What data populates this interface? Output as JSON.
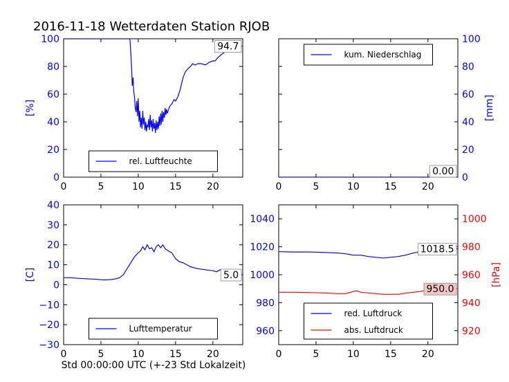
{
  "title": "2016-11-18 Wetterdaten Station RJOB",
  "xlabel": "Std 00:00:00 UTC (+-23 Std Lokalzeit)",
  "colors": {
    "blue": "#0000ff",
    "red": "#ff0000",
    "black": "#000000",
    "box_red": "#f4c6c6"
  },
  "chart_data": [
    {
      "type": "line",
      "panel": "top-left",
      "ylabel": "[%]",
      "xlim": [
        0,
        24
      ],
      "ylim": [
        0,
        100
      ],
      "xticks": [
        0,
        5,
        10,
        15,
        20
      ],
      "yticks": [
        0,
        20,
        40,
        60,
        80,
        100
      ],
      "legend_placement": "lower-center",
      "last_value_label": "94.7",
      "series": [
        {
          "name": "rel. Luftfeuchte",
          "color": "#0000ff",
          "x": [
            0,
            8.8,
            8.9,
            9.0,
            9.1,
            9.2,
            9.3,
            9.4,
            9.5,
            9.6,
            9.7,
            9.8,
            9.9,
            10.0,
            10.1,
            10.2,
            10.3,
            10.4,
            10.5,
            10.6,
            10.7,
            10.8,
            10.9,
            11.0,
            11.1,
            11.2,
            11.3,
            11.4,
            11.5,
            11.6,
            11.7,
            11.8,
            11.9,
            12.0,
            12.1,
            12.2,
            12.3,
            12.4,
            12.5,
            12.6,
            12.7,
            12.8,
            12.9,
            13.0,
            13.1,
            13.2,
            13.3,
            13.4,
            13.5,
            13.6,
            13.7,
            13.8,
            13.9,
            14.0,
            14.2,
            14.5,
            14.8,
            15.0,
            15.3,
            15.6,
            16.0,
            16.3,
            16.6,
            17.0,
            17.3,
            17.6,
            18.0,
            18.5,
            19.0,
            19.5,
            20.0,
            20.3,
            20.6,
            21.0,
            21.5,
            22.0,
            22.5,
            23.0,
            23.5,
            24.0
          ],
          "y": [
            100,
            100,
            99,
            90,
            80,
            66,
            72,
            62,
            58,
            50,
            47,
            55,
            44,
            57,
            40,
            48,
            36,
            43,
            35,
            48,
            38,
            43,
            34,
            40,
            33,
            38,
            36,
            42,
            34,
            45,
            36,
            41,
            33,
            42,
            35,
            39,
            32,
            41,
            34,
            40,
            35,
            44,
            37,
            46,
            38,
            48,
            40,
            47,
            43,
            50,
            45,
            49,
            46,
            48,
            51,
            53,
            56,
            55,
            58,
            63,
            72,
            76,
            78,
            80,
            82,
            81,
            82,
            82,
            81,
            83,
            84,
            84,
            86,
            88,
            90,
            92,
            94,
            95,
            94.7,
            94.7
          ]
        }
      ]
    },
    {
      "type": "line",
      "panel": "top-right",
      "ylabel": "[mm]",
      "xlim": [
        0,
        24
      ],
      "ylim": [
        0,
        100
      ],
      "xticks": [
        0,
        5,
        10,
        15,
        20
      ],
      "yticks": [
        0,
        20,
        40,
        60,
        80,
        100
      ],
      "y_axis_side": "right",
      "legend_placement": "upper-center",
      "last_value_label": "0.00",
      "series": [
        {
          "name": "kum. Niederschlag",
          "color": "#0000ff",
          "x": [
            0,
            24
          ],
          "y": [
            0,
            0
          ]
        }
      ]
    },
    {
      "type": "line",
      "panel": "bottom-left",
      "ylabel": "[C]",
      "xlim": [
        0,
        24
      ],
      "ylim": [
        -30,
        40
      ],
      "xticks": [
        0,
        5,
        10,
        15,
        20
      ],
      "yticks": [
        -30,
        -20,
        -10,
        0,
        10,
        20,
        30,
        40
      ],
      "legend_placement": "lower-center",
      "last_value_label": "5.0",
      "series": [
        {
          "name": "Lufttemperatur",
          "color": "#0000ff",
          "x": [
            0,
            1,
            2,
            3,
            4,
            5,
            5.5,
            6,
            6.5,
            7,
            7.5,
            8,
            8.5,
            9,
            9.5,
            10,
            10.3,
            10.6,
            10.9,
            11.2,
            11.5,
            11.8,
            12.1,
            12.4,
            12.7,
            13.0,
            13.3,
            13.6,
            14.0,
            14.5,
            15.0,
            15.5,
            16.0,
            16.5,
            17.0,
            18.0,
            19.0,
            20.0,
            20.5,
            21.0,
            22.0,
            23.0,
            24.0
          ],
          "y": [
            3.5,
            3.5,
            3.2,
            3.0,
            2.8,
            2.5,
            2.4,
            2.5,
            2.6,
            3.0,
            3.5,
            5.0,
            8.0,
            11.0,
            14.0,
            16.0,
            17.0,
            19.0,
            17.5,
            20.0,
            18.0,
            18.5,
            16.5,
            19.0,
            20.0,
            18.5,
            20.0,
            18.0,
            17.0,
            16.0,
            13.0,
            11.5,
            11.0,
            10.0,
            9.0,
            8.0,
            7.5,
            7.0,
            6.5,
            7.5,
            6.0,
            5.0,
            5.0
          ]
        }
      ]
    },
    {
      "type": "line",
      "panel": "bottom-right",
      "xlim": [
        0,
        24
      ],
      "ylim": [
        950,
        1050
      ],
      "xticks": [
        0,
        5,
        10,
        15,
        20
      ],
      "yticks": [
        960,
        980,
        1000,
        1020,
        1040
      ],
      "y2label": "[hPa]",
      "y2lim": [
        910,
        1010
      ],
      "y2ticks": [
        920,
        940,
        960,
        980,
        1000
      ],
      "legend_placement": "lower-center",
      "last_value_label": "1018.5",
      "last_value_label_2": "950.0",
      "series": [
        {
          "name": "red. Luftdruck",
          "color": "#0000ff",
          "axis": "left",
          "x": [
            0,
            2,
            4,
            6,
            8,
            9,
            10,
            11,
            12,
            13,
            14,
            15,
            16,
            17,
            18,
            19,
            20,
            21,
            22,
            23,
            24
          ],
          "y": [
            1016.5,
            1016.3,
            1016.3,
            1016.0,
            1015.5,
            1015.0,
            1014.0,
            1014.0,
            1013.0,
            1012.5,
            1012.0,
            1012.5,
            1013.0,
            1014.0,
            1015.5,
            1016.5,
            1017.5,
            1018.0,
            1018.3,
            1018.5,
            1018.5
          ]
        },
        {
          "name": "abs. Luftdruck",
          "color": "#ff0000",
          "axis": "right",
          "x": [
            0,
            2,
            4,
            6,
            8,
            9,
            10,
            10.5,
            11,
            12,
            13,
            14,
            15,
            16,
            17,
            18,
            19,
            20,
            21,
            22,
            23,
            24
          ],
          "y": [
            947.5,
            947.5,
            947.3,
            947.0,
            946.5,
            946.5,
            948.0,
            948.5,
            947.5,
            947.0,
            946.5,
            946.0,
            946.0,
            946.0,
            946.8,
            947.5,
            948.0,
            949.0,
            949.5,
            950.0,
            950.0,
            950.0
          ]
        }
      ]
    }
  ]
}
